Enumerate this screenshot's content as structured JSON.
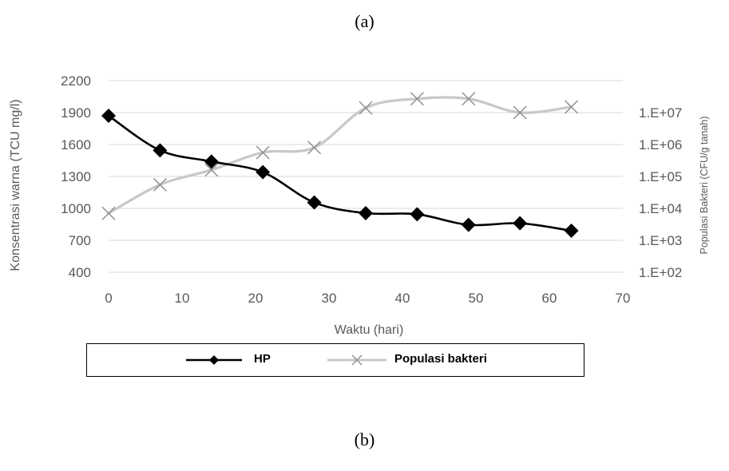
{
  "captions": {
    "top": "(a)",
    "bottom": "(b)"
  },
  "chart_data": {
    "type": "line",
    "xlabel": "Waktu (hari)",
    "ylabel_left": "Konsentrasi warna (TCU mg/l)",
    "ylabel_right": "Populasi Bakteri (CFU/g tanah)",
    "xlim": [
      0,
      70
    ],
    "x_ticks": [
      "0",
      "10",
      "20",
      "30",
      "40",
      "50",
      "60",
      "70"
    ],
    "ylim_left": [
      400,
      2200
    ],
    "y_ticks_left": [
      "400",
      "700",
      "1000",
      "1300",
      "1600",
      "1900",
      "2200"
    ],
    "ylim_right_log10": [
      2,
      7
    ],
    "y_ticks_right": [
      "1.E+02",
      "1.E+03",
      "1.E+04",
      "1.E+05",
      "1.E+06",
      "1.E+07"
    ],
    "grid": "horizontal",
    "legend_position": "bottom",
    "series": [
      {
        "name": "HP",
        "axis": "left",
        "color": "#000000",
        "marker": "diamond",
        "x": [
          0,
          7,
          14,
          21,
          28,
          35,
          42,
          49,
          56,
          63
        ],
        "y": [
          1870,
          1545,
          1440,
          1340,
          1055,
          955,
          945,
          845,
          860,
          790
        ]
      },
      {
        "name": "Populasi bakteri",
        "axis": "right",
        "color": "#c8c8c8",
        "marker": "x",
        "x": [
          0,
          7,
          14,
          21,
          28,
          35,
          42,
          49,
          56,
          63
        ],
        "y": [
          7000,
          55000,
          160000,
          560000,
          800000,
          14000000,
          27000000,
          27000000,
          10000000,
          15000000
        ]
      }
    ]
  }
}
